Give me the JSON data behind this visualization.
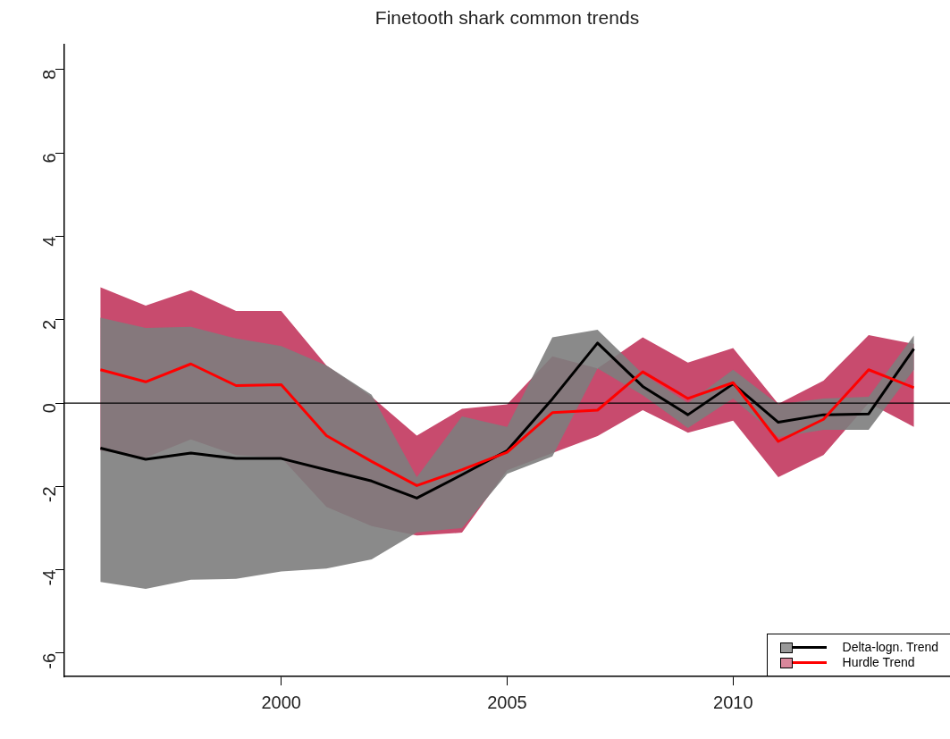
{
  "chart_data": {
    "type": "line",
    "title": "Finetooth shark common trends",
    "x": [
      1996,
      1997,
      1998,
      1999,
      2000,
      2001,
      2002,
      2003,
      2004,
      2005,
      2006,
      2007,
      2008,
      2009,
      2010,
      2011,
      2012,
      2013,
      2014
    ],
    "series": [
      {
        "name": "Delta-logn. Trend",
        "color": "#000000",
        "values": [
          -1.08,
          -1.35,
          -1.2,
          -1.33,
          -1.33,
          -1.6,
          -1.87,
          -2.28,
          -1.72,
          -1.14,
          0.1,
          1.44,
          0.4,
          -0.28,
          0.46,
          -0.46,
          -0.28,
          -0.26,
          1.3
        ],
        "lower": [
          -4.29,
          -4.46,
          -4.24,
          -4.22,
          -4.04,
          -3.97,
          -3.75,
          -3.1,
          -3.0,
          -1.7,
          -1.28,
          0.83,
          0.19,
          -0.6,
          0.11,
          -0.82,
          -0.64,
          -0.64,
          0.8
        ],
        "upper": [
          2.05,
          1.8,
          1.83,
          1.55,
          1.37,
          0.9,
          0.2,
          -1.78,
          -0.32,
          -0.57,
          1.58,
          1.76,
          0.7,
          0.0,
          0.8,
          -0.03,
          0.11,
          0.15,
          1.62
        ]
      },
      {
        "name": "Hurdle Trend",
        "color": "#ff0000",
        "values": [
          0.8,
          0.51,
          0.94,
          0.42,
          0.44,
          -0.78,
          -1.4,
          -1.98,
          -1.6,
          -1.18,
          -0.23,
          -0.17,
          0.75,
          0.11,
          0.49,
          -0.92,
          -0.39,
          0.8,
          0.37
        ],
        "lower": [
          -1.14,
          -1.31,
          -0.87,
          -1.25,
          -1.31,
          -2.49,
          -2.95,
          -3.18,
          -3.11,
          -1.61,
          -1.2,
          -0.79,
          -0.17,
          -0.71,
          -0.42,
          -1.78,
          -1.25,
          0.0,
          -0.57
        ],
        "upper": [
          2.78,
          2.34,
          2.71,
          2.21,
          2.21,
          0.9,
          0.15,
          -0.78,
          -0.14,
          -0.03,
          1.12,
          0.83,
          1.58,
          0.97,
          1.32,
          -0.02,
          0.54,
          1.63,
          1.42
        ]
      }
    ],
    "xlim": [
      1995.2,
      2014.8
    ],
    "xticks": [
      2000,
      2005,
      2010
    ],
    "ylim": [
      -6.56,
      8.6
    ],
    "yticks": [
      -6,
      -4,
      -2,
      0,
      2,
      4,
      6,
      8
    ],
    "ref_lines": [
      {
        "axis": "y",
        "value": 0,
        "color": "#000000"
      }
    ],
    "grid": false,
    "legend": "bottom right",
    "marker": "none",
    "line_style": "solid"
  }
}
